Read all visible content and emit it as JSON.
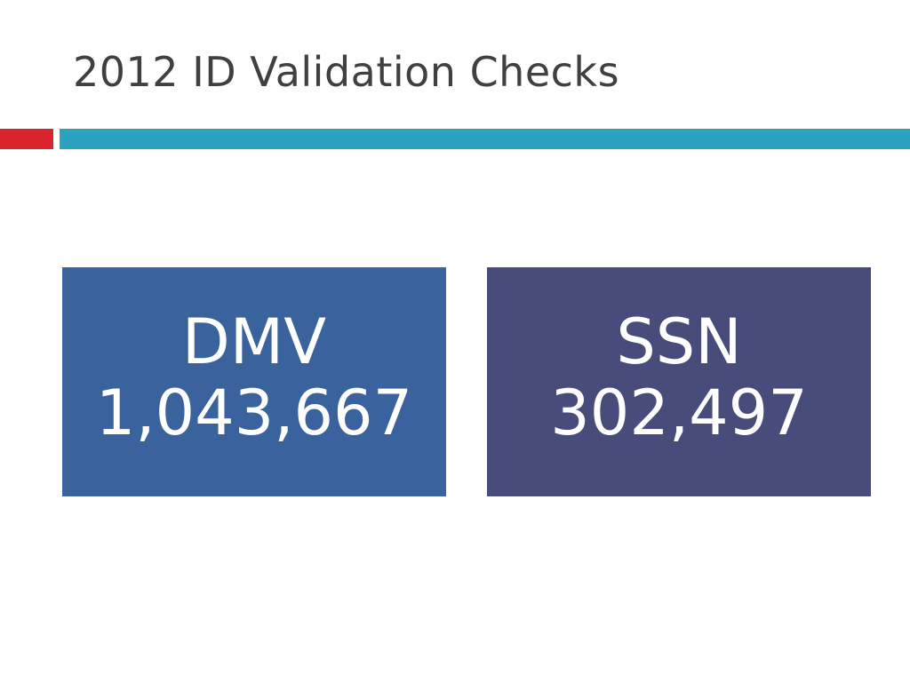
{
  "slide": {
    "title": "2012 ID Validation Checks"
  },
  "colors": {
    "accent_red": "#d9232d",
    "accent_blue": "#2ca1c0",
    "dmv_box": "#3a629c",
    "ssn_box": "#474c7a",
    "title_text": "#404040"
  },
  "boxes": [
    {
      "label": "DMV",
      "value": "1,043,667"
    },
    {
      "label": "SSN",
      "value": "302,497"
    }
  ]
}
